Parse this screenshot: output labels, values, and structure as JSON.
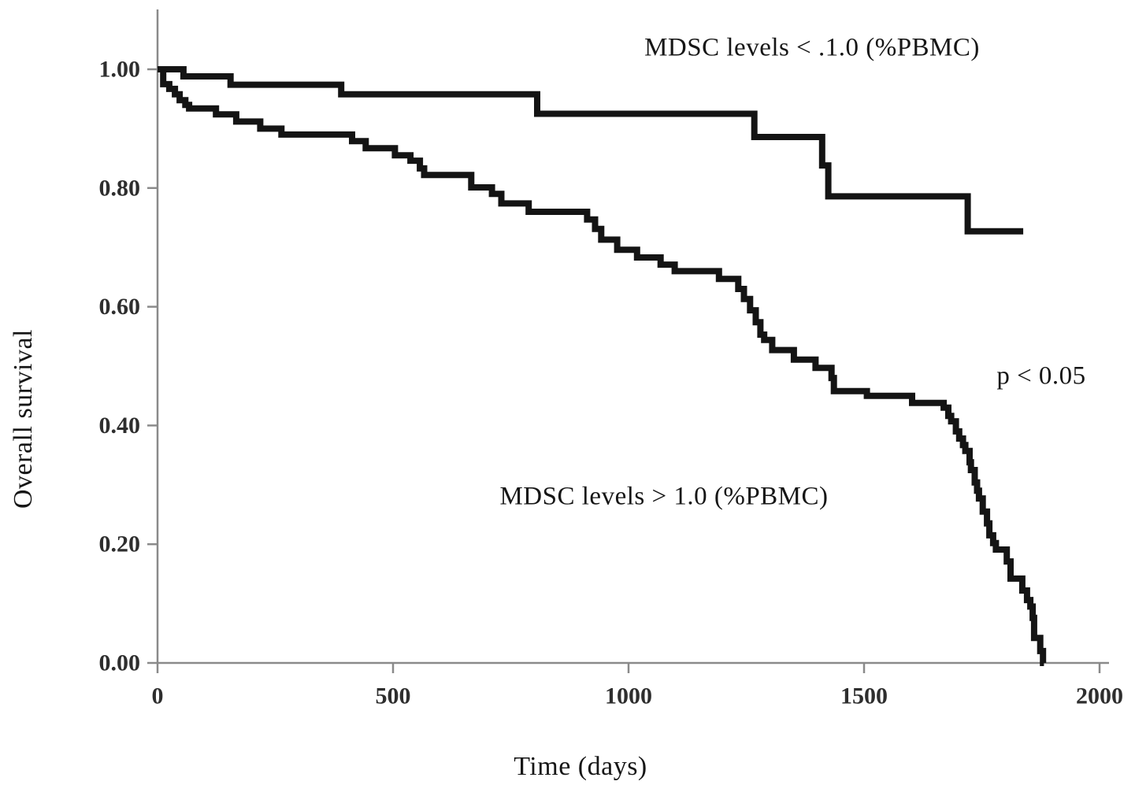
{
  "figure": {
    "background": "#ffffff",
    "curve_color": "#141414",
    "axis_color": "#8a8a8a",
    "text_color": "#161616"
  },
  "chart_data": {
    "type": "line",
    "subtype": "kaplan-meier-step-survival",
    "title": "",
    "xlabel": "Time (days)",
    "ylabel": "Overall survival",
    "xlim": [
      0,
      2000
    ],
    "ylim": [
      0.0,
      1.0
    ],
    "grid": false,
    "legend_position": "inline-annotations",
    "xticks": [
      "0",
      "500",
      "1000",
      "1500",
      "2000"
    ],
    "yticks": [
      "0.00",
      "0.20",
      "0.40",
      "0.60",
      "0.80",
      "1.00"
    ],
    "annotations": [
      {
        "id": "low-mdsc-label",
        "text": "MDSC levels < .1.0 (%PBMC)",
        "x_day": 1390,
        "y_surv": 1.035
      },
      {
        "id": "high-mdsc-label",
        "text": "MDSC levels > 1.0 (%PBMC)",
        "x_day": 1075,
        "y_surv": 0.278
      },
      {
        "id": "p-value",
        "text": "p < 0.05",
        "x_day": 1877,
        "y_surv": 0.483
      }
    ],
    "series": [
      {
        "name": "MDSC levels < .1.0 (%PBMC)",
        "color": "#141414",
        "end_time": 1838,
        "steps": [
          [
            0,
            1.0
          ],
          [
            55,
            0.988
          ],
          [
            155,
            0.974
          ],
          [
            390,
            0.958
          ],
          [
            806,
            0.925
          ],
          [
            1267,
            0.886
          ],
          [
            1411,
            0.838
          ],
          [
            1424,
            0.786
          ],
          [
            1720,
            0.727
          ]
        ]
      },
      {
        "name": "MDSC levels > 1.0 (%PBMC)",
        "color": "#141414",
        "end_time": 1882,
        "steps": [
          [
            0,
            1.0
          ],
          [
            12,
            0.975
          ],
          [
            25,
            0.967
          ],
          [
            37,
            0.958
          ],
          [
            47,
            0.948
          ],
          [
            59,
            0.94
          ],
          [
            67,
            0.934
          ],
          [
            124,
            0.924
          ],
          [
            167,
            0.912
          ],
          [
            218,
            0.9
          ],
          [
            263,
            0.89
          ],
          [
            413,
            0.879
          ],
          [
            442,
            0.867
          ],
          [
            504,
            0.855
          ],
          [
            537,
            0.846
          ],
          [
            557,
            0.833
          ],
          [
            566,
            0.822
          ],
          [
            666,
            0.801
          ],
          [
            710,
            0.79
          ],
          [
            730,
            0.774
          ],
          [
            788,
            0.76
          ],
          [
            912,
            0.747
          ],
          [
            929,
            0.731
          ],
          [
            942,
            0.713
          ],
          [
            976,
            0.696
          ],
          [
            1018,
            0.683
          ],
          [
            1068,
            0.671
          ],
          [
            1098,
            0.66
          ],
          [
            1192,
            0.647
          ],
          [
            1233,
            0.63
          ],
          [
            1245,
            0.613
          ],
          [
            1258,
            0.594
          ],
          [
            1270,
            0.574
          ],
          [
            1280,
            0.553
          ],
          [
            1288,
            0.544
          ],
          [
            1305,
            0.527
          ],
          [
            1351,
            0.511
          ],
          [
            1397,
            0.497
          ],
          [
            1431,
            0.48
          ],
          [
            1436,
            0.458
          ],
          [
            1506,
            0.45
          ],
          [
            1602,
            0.438
          ],
          [
            1669,
            0.43
          ],
          [
            1679,
            0.416
          ],
          [
            1685,
            0.407
          ],
          [
            1695,
            0.39
          ],
          [
            1702,
            0.378
          ],
          [
            1710,
            0.367
          ],
          [
            1715,
            0.357
          ],
          [
            1724,
            0.338
          ],
          [
            1727,
            0.325
          ],
          [
            1735,
            0.304
          ],
          [
            1740,
            0.29
          ],
          [
            1744,
            0.277
          ],
          [
            1752,
            0.255
          ],
          [
            1761,
            0.235
          ],
          [
            1766,
            0.215
          ],
          [
            1774,
            0.202
          ],
          [
            1780,
            0.191
          ],
          [
            1803,
            0.171
          ],
          [
            1811,
            0.142
          ],
          [
            1836,
            0.122
          ],
          [
            1846,
            0.106
          ],
          [
            1853,
            0.095
          ],
          [
            1858,
            0.076
          ],
          [
            1861,
            0.042
          ],
          [
            1874,
            0.02
          ],
          [
            1880,
            0.0
          ]
        ]
      }
    ]
  }
}
